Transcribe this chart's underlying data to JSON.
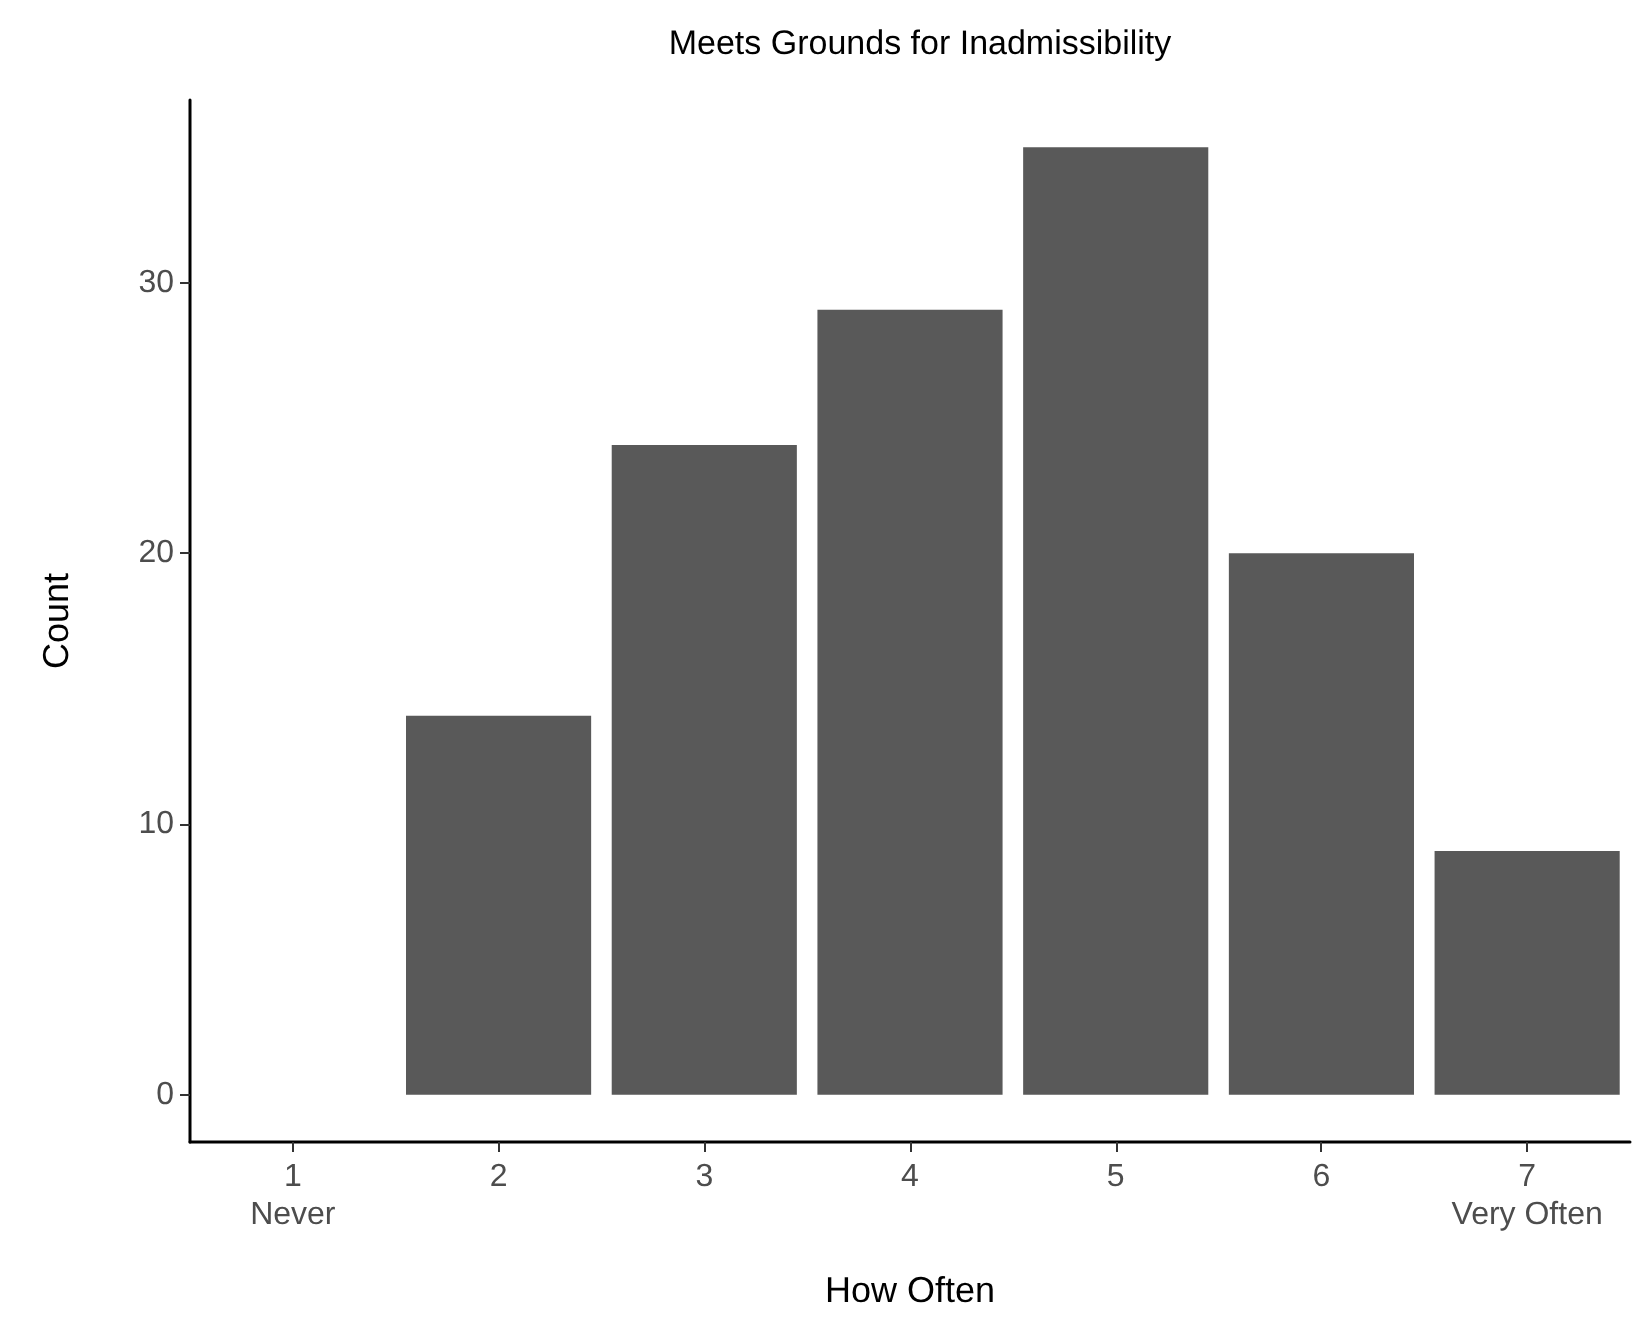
{
  "chart_data": {
    "type": "bar",
    "title": "Meets Grounds for Inadmissibility",
    "xlabel": "How Often",
    "ylabel": "Count",
    "categories": [
      "1\nNever",
      "2",
      "3",
      "4",
      "5",
      "6",
      "7\nVery Often"
    ],
    "values": [
      0,
      14,
      24,
      29,
      35,
      20,
      9
    ],
    "color": "#595959",
    "ylim": [
      -1.75,
      36.75
    ],
    "yticks": [
      0,
      10,
      20,
      30
    ],
    "grid": false
  }
}
